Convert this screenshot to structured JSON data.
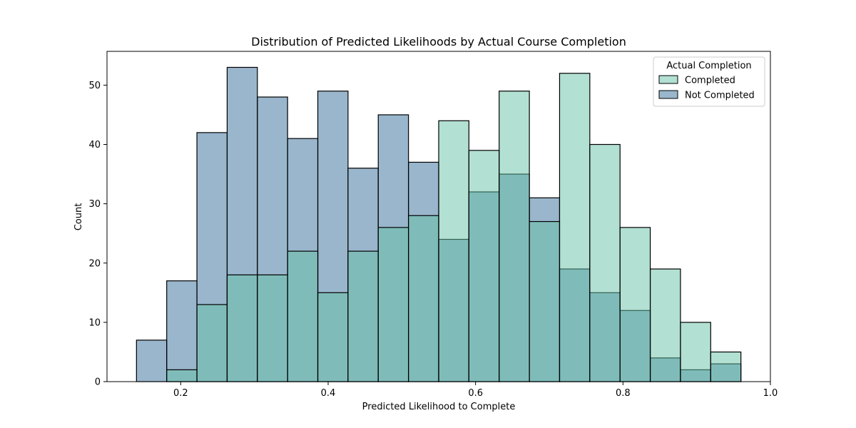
{
  "chart_data": {
    "type": "bar",
    "title": "Distribution of Predicted Likelihoods by Actual Course Completion",
    "xlabel": "Predicted Likelihood to Complete",
    "ylabel": "Count",
    "xlim": [
      0.1,
      1.0
    ],
    "ylim": [
      0,
      55.7
    ],
    "xticks": [
      0.2,
      0.4,
      0.6,
      0.8,
      1.0
    ],
    "xtick_labels": [
      "0.2",
      "0.4",
      "0.6",
      "0.8",
      "1.0"
    ],
    "yticks": [
      0,
      10,
      20,
      30,
      40,
      50
    ],
    "ytick_labels": [
      "0",
      "10",
      "20",
      "30",
      "40",
      "50"
    ],
    "bin_edges": [
      0.14,
      0.181,
      0.222,
      0.263,
      0.304,
      0.345,
      0.386,
      0.427,
      0.468,
      0.509,
      0.55,
      0.591,
      0.632,
      0.673,
      0.714,
      0.755,
      0.796,
      0.837,
      0.878,
      0.919,
      0.96
    ],
    "grid": false,
    "legend": {
      "title": "Actual Completion",
      "placement": "top-right"
    },
    "series": [
      {
        "name": "Completed",
        "color": "#66c2a5",
        "values": [
          0,
          2,
          13,
          18,
          18,
          22,
          15,
          22,
          26,
          28,
          44,
          39,
          49,
          27,
          52,
          40,
          26,
          19,
          10,
          5
        ]
      },
      {
        "name": "Not Completed",
        "color": "#336e99",
        "values": [
          7,
          17,
          42,
          53,
          48,
          41,
          49,
          36,
          45,
          37,
          24,
          32,
          35,
          31,
          19,
          15,
          12,
          4,
          2,
          3
        ]
      }
    ]
  }
}
